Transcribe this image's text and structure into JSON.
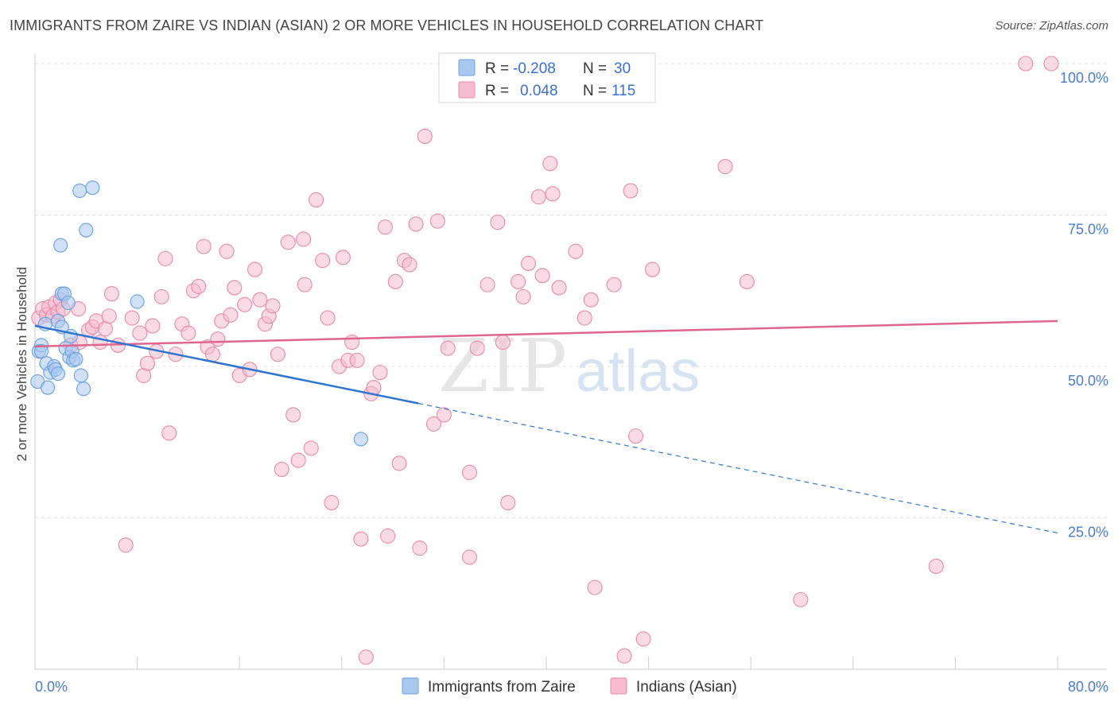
{
  "header": {
    "title": "IMMIGRANTS FROM ZAIRE VS INDIAN (ASIAN) 2 OR MORE VEHICLES IN HOUSEHOLD CORRELATION CHART",
    "source": "Source: ZipAtlas.com"
  },
  "watermark": {
    "zip": "ZIP",
    "atlas": "atlas"
  },
  "legend": {
    "rows": [
      {
        "r_label": "R =",
        "r_value": "-0.208",
        "n_label": "N =",
        "n_value": "30"
      },
      {
        "r_label": "R =",
        "r_value": "0.048",
        "n_label": "N =",
        "n_value": "115"
      }
    ]
  },
  "bottom_legend": [
    "Immigrants from Zaire",
    "Indians (Asian)"
  ],
  "colors": {
    "zaire_fill": "#a9c8f0",
    "zaire_stroke": "#6a9fe0",
    "zaire_line": "#2f74d0",
    "indian_fill": "#f6bccf",
    "indian_stroke": "#e88aa8",
    "indian_line": "#e0658d",
    "grid": "#e3e3e3",
    "tick_label": "#4a7cc9"
  },
  "chart_data": {
    "type": "scatter",
    "title": "IMMIGRANTS FROM ZAIRE VS INDIAN (ASIAN) 2 OR MORE VEHICLES IN HOUSEHOLD CORRELATION CHART",
    "ylabel": "2 or more Vehicles in Household",
    "xlabel": "",
    "xlim": [
      0,
      80
    ],
    "ylim": [
      0,
      100
    ],
    "x_tick_labels": [
      "0.0%",
      "80.0%"
    ],
    "y_ticks": [
      25,
      50,
      75,
      100
    ],
    "y_tick_labels": [
      "25.0%",
      "50.0%",
      "75.0%",
      "100.0%"
    ],
    "grid": true,
    "legend_position": "top-center",
    "series": [
      {
        "name": "Immigrants from Zaire",
        "r": -0.208,
        "n": 30,
        "trend": {
          "x": [
            0,
            30
          ],
          "y": [
            56.7,
            43.9
          ],
          "dashed_to": [
            80,
            22.5
          ]
        },
        "points": [
          [
            0.2,
            47.5
          ],
          [
            0.3,
            52.5
          ],
          [
            0.5,
            53.5
          ],
          [
            0.5,
            52.5
          ],
          [
            0.8,
            57.0
          ],
          [
            0.9,
            50.5
          ],
          [
            1.0,
            46.5
          ],
          [
            1.2,
            49.0
          ],
          [
            1.5,
            50.0
          ],
          [
            1.6,
            49.5
          ],
          [
            1.8,
            48.8
          ],
          [
            1.8,
            57.5
          ],
          [
            2.1,
            56.5
          ],
          [
            2.0,
            70.0
          ],
          [
            2.1,
            62.0
          ],
          [
            2.3,
            62.0
          ],
          [
            2.4,
            53.0
          ],
          [
            2.6,
            60.5
          ],
          [
            2.7,
            51.5
          ],
          [
            2.8,
            55.0
          ],
          [
            2.9,
            52.5
          ],
          [
            3.0,
            51.0
          ],
          [
            3.2,
            51.2
          ],
          [
            3.6,
            48.5
          ],
          [
            3.8,
            46.3
          ],
          [
            4.0,
            72.5
          ],
          [
            3.5,
            79.0
          ],
          [
            4.5,
            79.5
          ],
          [
            8.0,
            60.7
          ],
          [
            25.5,
            38.0
          ]
        ]
      },
      {
        "name": "Indians (Asian)",
        "r": 0.048,
        "n": 115,
        "trend": {
          "x": [
            0,
            80
          ],
          "y": [
            53.3,
            57.5
          ]
        },
        "points": [
          [
            0.3,
            58.0
          ],
          [
            0.6,
            59.5
          ],
          [
            0.9,
            58.5
          ],
          [
            1.1,
            59.8
          ],
          [
            1.4,
            58.3
          ],
          [
            1.6,
            60.5
          ],
          [
            1.8,
            59.0
          ],
          [
            2.0,
            61.0
          ],
          [
            2.2,
            59.5
          ],
          [
            2.8,
            53.5
          ],
          [
            3.4,
            59.5
          ],
          [
            3.5,
            54.0
          ],
          [
            4.2,
            56.0
          ],
          [
            4.5,
            56.5
          ],
          [
            4.8,
            57.5
          ],
          [
            5.1,
            54.0
          ],
          [
            5.5,
            56.2
          ],
          [
            5.8,
            58.3
          ],
          [
            6.0,
            62.0
          ],
          [
            6.5,
            53.5
          ],
          [
            7.1,
            20.5
          ],
          [
            7.6,
            58.0
          ],
          [
            8.2,
            55.5
          ],
          [
            8.5,
            48.5
          ],
          [
            8.8,
            50.5
          ],
          [
            9.2,
            56.7
          ],
          [
            9.5,
            52.5
          ],
          [
            9.9,
            61.5
          ],
          [
            10.2,
            67.8
          ],
          [
            10.5,
            39.0
          ],
          [
            11.0,
            52.0
          ],
          [
            11.5,
            57.0
          ],
          [
            12.0,
            55.5
          ],
          [
            12.4,
            62.5
          ],
          [
            12.8,
            63.2
          ],
          [
            13.2,
            69.8
          ],
          [
            13.5,
            53.2
          ],
          [
            13.9,
            52.0
          ],
          [
            14.3,
            54.5
          ],
          [
            14.6,
            57.5
          ],
          [
            15.0,
            69.0
          ],
          [
            15.3,
            58.5
          ],
          [
            15.6,
            63.0
          ],
          [
            16.0,
            48.5
          ],
          [
            16.4,
            60.2
          ],
          [
            16.8,
            49.5
          ],
          [
            17.2,
            66.0
          ],
          [
            17.6,
            61.0
          ],
          [
            18.0,
            57.0
          ],
          [
            18.3,
            58.3
          ],
          [
            18.6,
            60.0
          ],
          [
            19.0,
            52.0
          ],
          [
            19.3,
            33.0
          ],
          [
            19.8,
            70.5
          ],
          [
            20.2,
            42.0
          ],
          [
            20.6,
            34.5
          ],
          [
            21.0,
            71.0
          ],
          [
            21.1,
            63.5
          ],
          [
            21.6,
            36.5
          ],
          [
            22.0,
            77.5
          ],
          [
            22.5,
            67.5
          ],
          [
            22.9,
            58.0
          ],
          [
            23.2,
            27.5
          ],
          [
            23.8,
            50.0
          ],
          [
            24.1,
            68.0
          ],
          [
            24.5,
            51.0
          ],
          [
            24.8,
            54.0
          ],
          [
            25.2,
            51.0
          ],
          [
            25.5,
            21.5
          ],
          [
            25.9,
            2.0
          ],
          [
            26.3,
            45.5
          ],
          [
            26.5,
            46.5
          ],
          [
            27.0,
            49.0
          ],
          [
            27.4,
            73.0
          ],
          [
            27.6,
            22.0
          ],
          [
            28.2,
            64.0
          ],
          [
            28.5,
            34.0
          ],
          [
            28.9,
            67.5
          ],
          [
            29.3,
            66.8
          ],
          [
            29.8,
            73.5
          ],
          [
            30.1,
            20.0
          ],
          [
            30.5,
            88.0
          ],
          [
            31.2,
            40.5
          ],
          [
            31.5,
            74.0
          ],
          [
            32.0,
            42.0
          ],
          [
            32.3,
            53.0
          ],
          [
            34.0,
            32.5
          ],
          [
            34.0,
            18.5
          ],
          [
            34.6,
            53.0
          ],
          [
            35.4,
            63.5
          ],
          [
            36.2,
            73.8
          ],
          [
            36.6,
            54.0
          ],
          [
            37.0,
            27.5
          ],
          [
            37.8,
            64.0
          ],
          [
            38.2,
            61.5
          ],
          [
            38.6,
            67.0
          ],
          [
            39.4,
            78.0
          ],
          [
            39.7,
            65.0
          ],
          [
            40.3,
            83.5
          ],
          [
            40.5,
            78.5
          ],
          [
            41.0,
            63.0
          ],
          [
            42.3,
            69.0
          ],
          [
            43.0,
            58.0
          ],
          [
            43.5,
            61.0
          ],
          [
            43.8,
            13.5
          ],
          [
            45.3,
            63.5
          ],
          [
            46.1,
            2.2
          ],
          [
            46.6,
            79.0
          ],
          [
            47.0,
            38.5
          ],
          [
            47.6,
            5.0
          ],
          [
            48.3,
            66.0
          ],
          [
            54.0,
            83.0
          ],
          [
            55.7,
            64.0
          ],
          [
            59.9,
            11.5
          ],
          [
            70.5,
            17.0
          ],
          [
            77.5,
            100.0
          ],
          [
            79.5,
            100.0
          ]
        ]
      }
    ]
  }
}
